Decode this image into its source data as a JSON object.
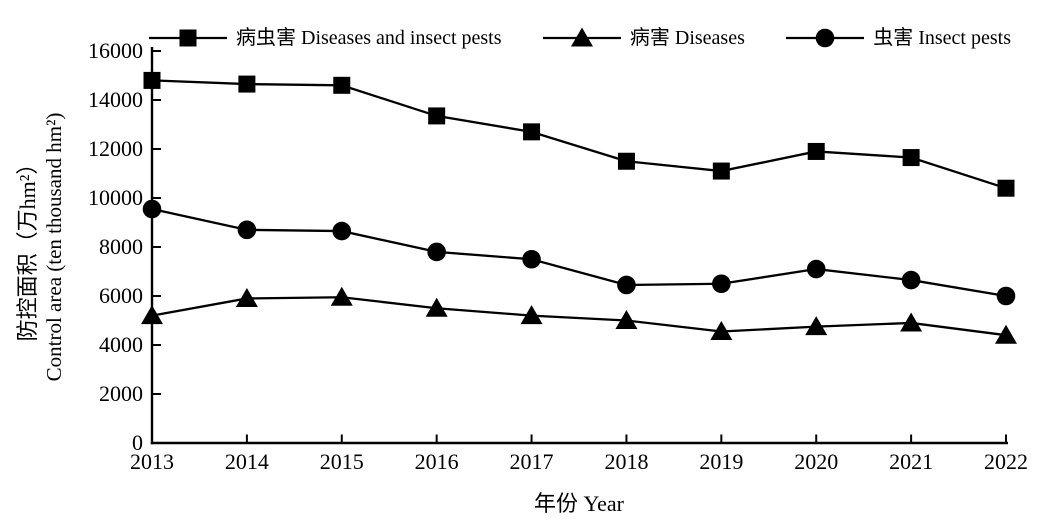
{
  "chart_data": {
    "type": "line",
    "title": "",
    "x": [
      2013,
      2014,
      2015,
      2016,
      2017,
      2018,
      2019,
      2020,
      2021,
      2022
    ],
    "series": [
      {
        "name": "病虫害 Diseases and insect pests",
        "marker": "square",
        "values": [
          14800,
          14650,
          14600,
          13350,
          12700,
          11500,
          11100,
          11900,
          11650,
          10400
        ]
      },
      {
        "name": "病害 Diseases",
        "marker": "triangle",
        "values": [
          5200,
          5900,
          5950,
          5500,
          5200,
          5000,
          4550,
          4750,
          4900,
          4400
        ]
      },
      {
        "name": "虫害 Insect pests",
        "marker": "circle",
        "values": [
          9550,
          8700,
          8650,
          7800,
          7500,
          6450,
          6500,
          7100,
          6650,
          6000
        ]
      }
    ],
    "xlabel": "年份 Year",
    "ylabel_zh": "防控面积（万hm²）",
    "ylabel_en": "Control area (ten thousand hm²)",
    "ylim": [
      0,
      16000
    ],
    "yticks": [
      0,
      2000,
      4000,
      6000,
      8000,
      10000,
      12000,
      14000,
      16000
    ],
    "legend_position": "top",
    "grid": false,
    "color": "#000000",
    "background": "#ffffff"
  }
}
